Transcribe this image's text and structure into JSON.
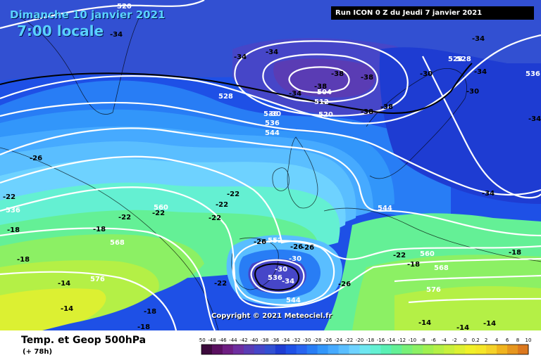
{
  "header": {
    "date": "Dimanche 10 janvier 2021",
    "time": "7:00 locale",
    "run": "Run ICON 0 Z du Jeudi 7 janvier 2021"
  },
  "copyright": "Copyright © 2021 Meteociel.fr",
  "footer": {
    "parameter": "Temp. et Geop 500hPa",
    "lead_time": "(+ 78h)"
  },
  "legend": {
    "ticks": [
      "-50",
      "-48",
      "-46",
      "-44",
      "-42",
      "-40",
      "-38",
      "-36",
      "-34",
      "-32",
      "-30",
      "-28",
      "-26",
      "-24",
      "-22",
      "-20",
      "-18",
      "-16",
      "-14",
      "-12",
      "-10",
      "-8",
      "-6",
      "-4",
      "-2",
      "0",
      "0.2",
      "2",
      "4",
      "6",
      "8",
      "10"
    ],
    "colors": [
      "#3c0a3c",
      "#5a1060",
      "#6e1e82",
      "#6e2ea0",
      "#5a3cb4",
      "#4646c8",
      "#3250d2",
      "#1e3cd2",
      "#1e50e6",
      "#2864f0",
      "#287df5",
      "#3296fa",
      "#46aaff",
      "#5abeff",
      "#6ed2ff",
      "#6ee6f0",
      "#64f0d2",
      "#5af0b4",
      "#64f096",
      "#78f078",
      "#8cf064",
      "#a0f050",
      "#b4f046",
      "#c8f03c",
      "#dcf032",
      "#f0f028",
      "#f5e628",
      "#f5d228",
      "#f0b41e",
      "#e6961e",
      "#dc781e"
    ]
  },
  "map_labels": {
    "temperature": [
      {
        "text": "-34"
      },
      {
        "text": "-34"
      },
      {
        "text": "-38"
      },
      {
        "text": "-38"
      },
      {
        "text": "-34"
      },
      {
        "text": "-30"
      },
      {
        "text": "-38"
      },
      {
        "text": "-38"
      },
      {
        "text": "-34"
      },
      {
        "text": "-30"
      },
      {
        "text": "-34"
      },
      {
        "text": "-30"
      },
      {
        "text": "-34"
      },
      {
        "text": "-34"
      },
      {
        "text": "-34"
      },
      {
        "text": "-38"
      },
      {
        "text": "-26"
      },
      {
        "text": "-22"
      },
      {
        "text": "-22"
      },
      {
        "text": "-22"
      },
      {
        "text": "-22"
      },
      {
        "text": "-22"
      },
      {
        "text": "-22"
      },
      {
        "text": "-18"
      },
      {
        "text": "-18"
      },
      {
        "text": "-14"
      },
      {
        "text": "-14"
      },
      {
        "text": "-18"
      },
      {
        "text": "-18"
      },
      {
        "text": "-26"
      },
      {
        "text": "-26"
      },
      {
        "text": "-26"
      },
      {
        "text": "-30"
      },
      {
        "text": "-30"
      },
      {
        "text": "-34"
      },
      {
        "text": "-26"
      },
      {
        "text": "-22"
      },
      {
        "text": "-18"
      },
      {
        "text": "-18"
      },
      {
        "text": "-14"
      },
      {
        "text": "-14"
      },
      {
        "text": "-14"
      },
      {
        "text": "-18"
      },
      {
        "text": "-22"
      }
    ],
    "geopotential": [
      {
        "text": "520"
      },
      {
        "text": "504"
      },
      {
        "text": "512"
      },
      {
        "text": "520"
      },
      {
        "text": "528"
      },
      {
        "text": "528"
      },
      {
        "text": "536"
      },
      {
        "text": "536"
      },
      {
        "text": "544"
      },
      {
        "text": "536"
      },
      {
        "text": "560"
      },
      {
        "text": "568"
      },
      {
        "text": "576"
      },
      {
        "text": "544"
      },
      {
        "text": "552"
      },
      {
        "text": "536"
      },
      {
        "text": "544"
      },
      {
        "text": "560"
      },
      {
        "text": "568"
      },
      {
        "text": "576"
      },
      {
        "text": "528"
      },
      {
        "text": "536"
      }
    ]
  }
}
